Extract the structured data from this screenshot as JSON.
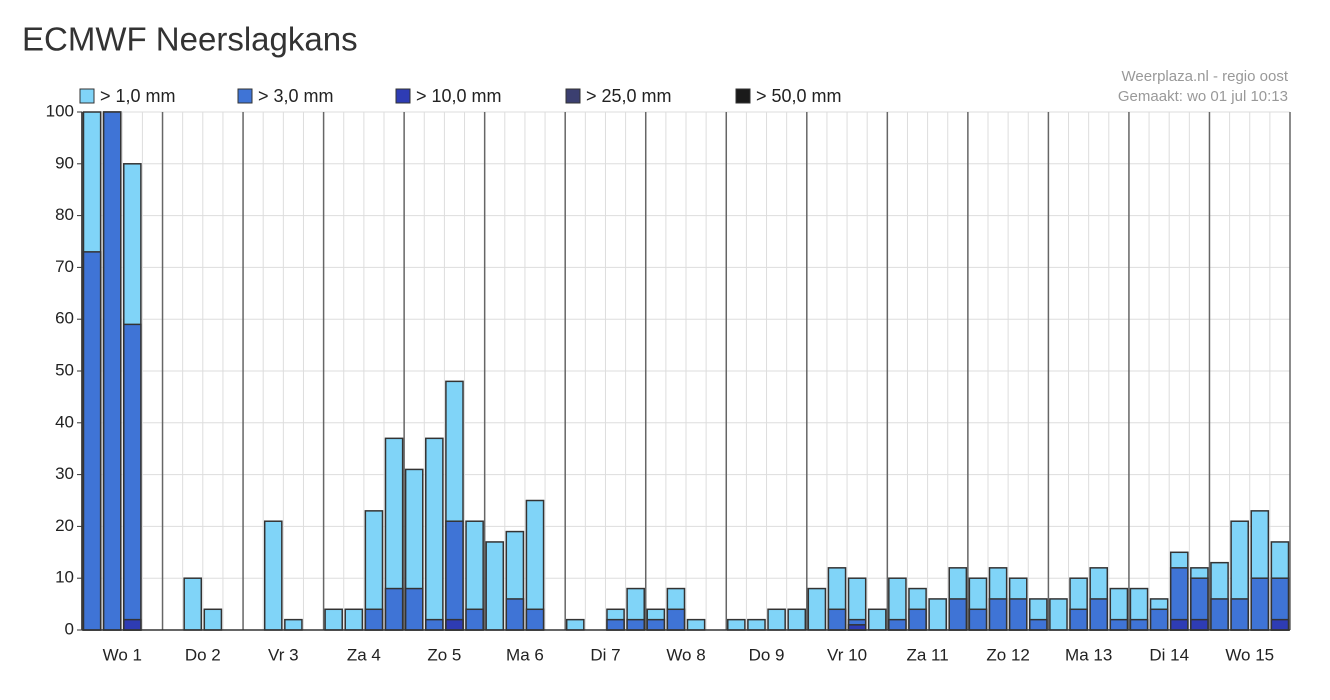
{
  "chart_data": {
    "type": "bar",
    "title": "ECMWF Neerslagkans",
    "source": "Weerplaza.nl - regio oost",
    "made": "Gemaakt: wo 01 jul 10:13",
    "categories": [
      "Wo 1",
      "Do 2",
      "Vr 3",
      "Za 4",
      "Zo 5",
      "Ma 6",
      "Di 7",
      "Wo 8",
      "Do 9",
      "Vr 10",
      "Za 11",
      "Zo 12",
      "Ma 13",
      "Di 14",
      "Wo 15"
    ],
    "ylim": [
      0,
      100
    ],
    "yticks": [
      0,
      10,
      20,
      30,
      40,
      50,
      60,
      70,
      80,
      90,
      100
    ],
    "grid": true,
    "series": [
      {
        "name": "> 1,0 mm",
        "color": "#80d4f8",
        "values": [
          [
            100,
            100,
            90,
            0
          ],
          [
            0,
            10,
            4,
            0
          ],
          [
            0,
            21,
            2,
            0
          ],
          [
            4,
            4,
            23,
            37
          ],
          [
            31,
            37,
            48,
            21
          ],
          [
            17,
            19,
            25,
            0
          ],
          [
            2,
            0,
            4,
            8
          ],
          [
            4,
            8,
            2,
            0
          ],
          [
            2,
            2,
            4,
            4
          ],
          [
            8,
            12,
            10,
            4
          ],
          [
            10,
            8,
            6,
            12
          ],
          [
            10,
            12,
            10,
            6
          ],
          [
            6,
            10,
            12,
            8
          ],
          [
            8,
            6,
            15,
            12
          ],
          [
            13,
            21,
            23,
            17
          ]
        ]
      },
      {
        "name": "> 3,0 mm",
        "color": "#3f74d6",
        "values": [
          [
            73,
            100,
            59,
            0
          ],
          [
            0,
            0,
            0,
            0
          ],
          [
            0,
            0,
            0,
            0
          ],
          [
            0,
            0,
            4,
            8
          ],
          [
            8,
            2,
            21,
            4
          ],
          [
            0,
            6,
            4,
            0
          ],
          [
            0,
            0,
            2,
            2
          ],
          [
            2,
            4,
            0,
            0
          ],
          [
            0,
            0,
            0,
            0
          ],
          [
            0,
            4,
            2,
            0
          ],
          [
            2,
            4,
            0,
            6
          ],
          [
            4,
            6,
            6,
            2
          ],
          [
            0,
            4,
            6,
            2
          ],
          [
            2,
            4,
            12,
            10
          ],
          [
            6,
            6,
            10,
            10
          ]
        ]
      },
      {
        "name": "> 10,0 mm",
        "color": "#2e3cb4",
        "values": [
          [
            0,
            0,
            2,
            0
          ],
          [
            0,
            0,
            0,
            0
          ],
          [
            0,
            0,
            0,
            0
          ],
          [
            0,
            0,
            0,
            0
          ],
          [
            0,
            0,
            2,
            0
          ],
          [
            0,
            0,
            0,
            0
          ],
          [
            0,
            0,
            0,
            0
          ],
          [
            0,
            0,
            0,
            0
          ],
          [
            0,
            0,
            0,
            0
          ],
          [
            0,
            0,
            1,
            0
          ],
          [
            0,
            0,
            0,
            0
          ],
          [
            0,
            0,
            0,
            0
          ],
          [
            0,
            0,
            0,
            0
          ],
          [
            0,
            0,
            2,
            2
          ],
          [
            0,
            0,
            0,
            2
          ]
        ]
      },
      {
        "name": "> 25,0 mm",
        "color": "#3b3f70",
        "values": [
          [
            0,
            0,
            0,
            0
          ],
          [
            0,
            0,
            0,
            0
          ],
          [
            0,
            0,
            0,
            0
          ],
          [
            0,
            0,
            0,
            0
          ],
          [
            0,
            0,
            0,
            0
          ],
          [
            0,
            0,
            0,
            0
          ],
          [
            0,
            0,
            0,
            0
          ],
          [
            0,
            0,
            0,
            0
          ],
          [
            0,
            0,
            0,
            0
          ],
          [
            0,
            0,
            0,
            0
          ],
          [
            0,
            0,
            0,
            0
          ],
          [
            0,
            0,
            0,
            0
          ],
          [
            0,
            0,
            0,
            0
          ],
          [
            0,
            0,
            0,
            0
          ],
          [
            0,
            0,
            0,
            0
          ]
        ]
      },
      {
        "name": "> 50,0 mm",
        "color": "#1a1a1a",
        "values": [
          [
            0,
            0,
            0,
            0
          ],
          [
            0,
            0,
            0,
            0
          ],
          [
            0,
            0,
            0,
            0
          ],
          [
            0,
            0,
            0,
            0
          ],
          [
            0,
            0,
            0,
            0
          ],
          [
            0,
            0,
            0,
            0
          ],
          [
            0,
            0,
            0,
            0
          ],
          [
            0,
            0,
            0,
            0
          ],
          [
            0,
            0,
            0,
            0
          ],
          [
            0,
            0,
            0,
            0
          ],
          [
            0,
            0,
            0,
            0
          ],
          [
            0,
            0,
            0,
            0
          ],
          [
            0,
            0,
            0,
            0
          ],
          [
            0,
            0,
            0,
            0
          ],
          [
            0,
            0,
            0,
            0
          ]
        ]
      }
    ]
  }
}
